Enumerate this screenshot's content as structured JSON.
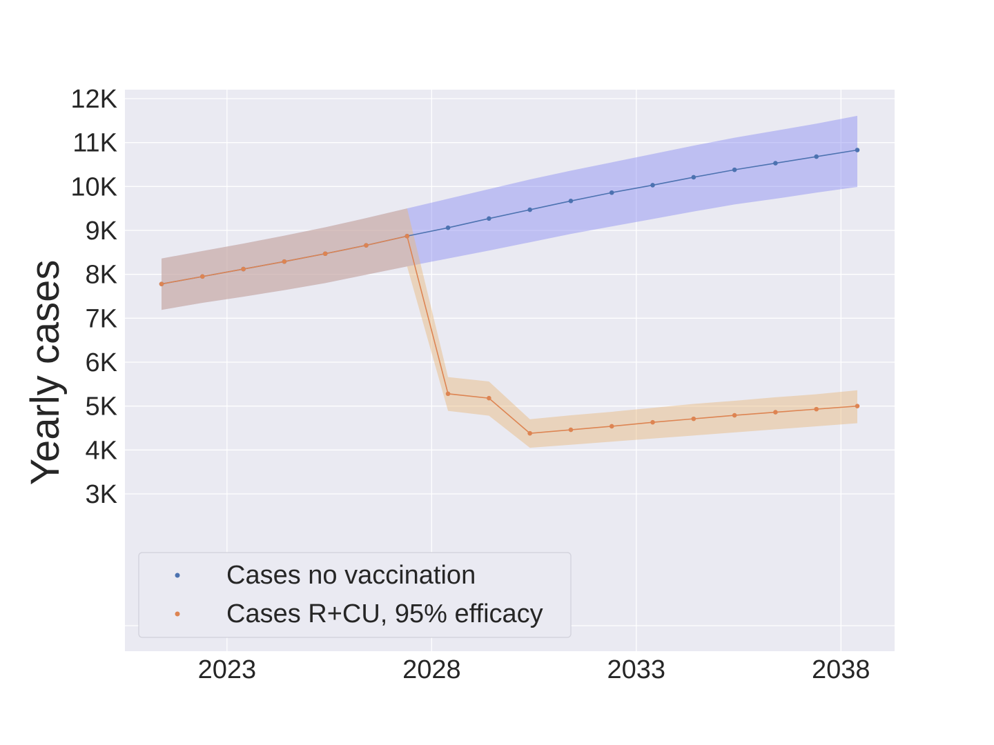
{
  "chart_data": {
    "type": "line",
    "title": "",
    "xlabel": "",
    "ylabel": "Yearly cases",
    "xlim": [
      2020.3,
      2039.0
    ],
    "ylim": [
      0,
      12200
    ],
    "grid": true,
    "legend_position": "lower-left",
    "x_ticks": [
      2023,
      2028,
      2033,
      2038
    ],
    "x_tick_labels": [
      "2023",
      "2028",
      "2033",
      "2038"
    ],
    "y_ticks": [
      3000,
      4000,
      5000,
      6000,
      7000,
      8000,
      9000,
      10000,
      11000,
      12000
    ],
    "y_tick_labels": [
      "3K",
      "4K",
      "5K",
      "6K",
      "7K",
      "8K",
      "9K",
      "10K",
      "11K",
      "12K"
    ],
    "colors": {
      "background": "#eaeaf2",
      "grid": "#ffffff",
      "blue": "#4c72b0",
      "orange": "#dd8452",
      "blue_band": "#8a8cf2",
      "orange_band": "#e8b87a",
      "text": "#262626"
    },
    "series": [
      {
        "name": "Cases no vaccination",
        "color": "#4c72b0",
        "x": [
          2021.4,
          2022.4,
          2023.4,
          2024.4,
          2025.4,
          2026.4,
          2027.4,
          2028.4,
          2029.4,
          2030.4,
          2031.4,
          2032.4,
          2033.4,
          2034.4,
          2035.4,
          2036.4,
          2037.4,
          2038.4
        ],
        "values": [
          7780,
          7950,
          8120,
          8290,
          8470,
          8660,
          8870,
          9060,
          9270,
          9470,
          9670,
          9860,
          10030,
          10210,
          10380,
          10530,
          10680,
          10830
        ],
        "lower": [
          7190,
          7350,
          7490,
          7640,
          7800,
          7990,
          8180,
          8360,
          8540,
          8730,
          8920,
          9090,
          9260,
          9430,
          9590,
          9720,
          9860,
          9990
        ],
        "upper": [
          8360,
          8530,
          8700,
          8880,
          9070,
          9280,
          9500,
          9720,
          9940,
          10160,
          10360,
          10550,
          10740,
          10930,
          11110,
          11270,
          11430,
          11610
        ]
      },
      {
        "name": "Cases R+CU, 95% efficacy",
        "color": "#dd8452",
        "x": [
          2021.4,
          2022.4,
          2023.4,
          2024.4,
          2025.4,
          2026.4,
          2027.4,
          2028.4,
          2029.4,
          2030.4,
          2031.4,
          2032.4,
          2033.4,
          2034.4,
          2035.4,
          2036.4,
          2037.4,
          2038.4
        ],
        "values": [
          7780,
          7950,
          8120,
          8290,
          8470,
          8660,
          8870,
          5280,
          5180,
          4380,
          4460,
          4540,
          4630,
          4710,
          4790,
          4860,
          4930,
          5000
        ],
        "lower": [
          7190,
          7350,
          7490,
          7640,
          7800,
          7990,
          8180,
          4890,
          4780,
          4050,
          4120,
          4190,
          4260,
          4330,
          4400,
          4470,
          4540,
          4610
        ],
        "upper": [
          8360,
          8530,
          8700,
          8880,
          9070,
          9280,
          9500,
          5660,
          5560,
          4700,
          4790,
          4870,
          4960,
          5050,
          5120,
          5200,
          5270,
          5360
        ]
      }
    ]
  }
}
